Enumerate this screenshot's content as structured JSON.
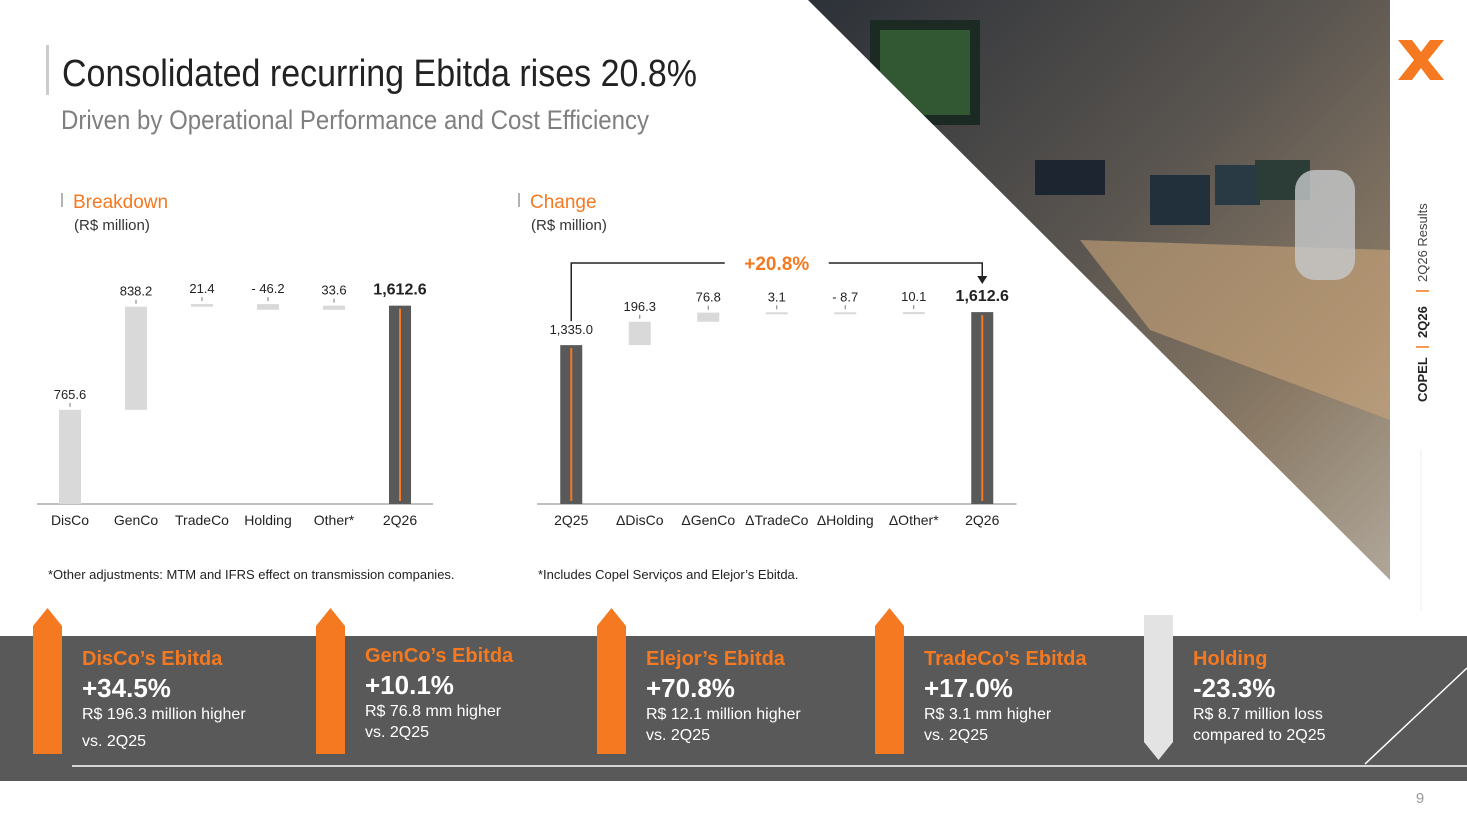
{
  "header": {
    "title": "Consolidated recurring Ebitda rises 20.8%",
    "subtitle": "Driven by Operational Performance and Cost Efficiency"
  },
  "chart_data": [
    {
      "type": "waterfall",
      "title": "Breakdown",
      "subtitle": "(R$ million)",
      "categories": [
        "DisCo",
        "GenCo",
        "TradeCo",
        "Holding",
        "Other*",
        "2Q26"
      ],
      "values": [
        765.6,
        838.2,
        21.4,
        -46.2,
        33.6,
        1612.6
      ],
      "value_labels": [
        "765.6",
        "838.2",
        "21.4",
        "- 46.2",
        "33.6",
        "1,612.6"
      ],
      "is_total": [
        false,
        false,
        false,
        false,
        false,
        true
      ],
      "color": "#d9d9d9",
      "total_color": "#595959",
      "total_line_color": "#f47920",
      "ylim": [
        0,
        2000
      ],
      "footnote": "*Other adjustments: MTM and IFRS effect on transmission companies."
    },
    {
      "type": "waterfall",
      "title": "Change",
      "subtitle": "(R$ million)",
      "categories": [
        "2Q25",
        "ΔDisCo",
        "ΔGenCo",
        "ΔTradeCo",
        "ΔHolding",
        "ΔOther*",
        "2Q26"
      ],
      "values": [
        1335.0,
        196.3,
        76.8,
        3.1,
        -8.7,
        10.1,
        1612.6
      ],
      "value_labels": [
        "1,335.0",
        "196.3",
        "76.8",
        "3.1",
        "- 8.7",
        "10.1",
        "1,612.6"
      ],
      "is_total": [
        true,
        false,
        false,
        false,
        false,
        false,
        true
      ],
      "color": "#d9d9d9",
      "total_color": "#595959",
      "total_line_color": "#f47920",
      "ylim": [
        0,
        2000
      ],
      "annotation": "+20.8%",
      "footnote": "*Includes Copel Serviços and Elejor’s Ebitda."
    }
  ],
  "cards": [
    {
      "title": "DisCo’s Ebitda",
      "value": "+34.5%",
      "lines": [
        "R$ 196.3 million higher",
        "vs. 2Q25"
      ],
      "arrow": "up"
    },
    {
      "title": "GenCo’s Ebitda",
      "value": "+10.1%",
      "lines": [
        "R$ 76.8 mm higher",
        "vs. 2Q25"
      ],
      "arrow": "up"
    },
    {
      "title": "Elejor’s Ebitda",
      "value": "+70.8%",
      "lines": [
        "R$ 12.1 million higher",
        "vs. 2Q25"
      ],
      "arrow": "up"
    },
    {
      "title": "TradeCo’s Ebitda",
      "value": "+17.0%",
      "lines": [
        "R$ 3.1 mm higher",
        "vs. 2Q25"
      ],
      "arrow": "up"
    },
    {
      "title": "Holding",
      "value": "-23.3%",
      "lines": [
        "R$ 8.7 million loss",
        "compared to 2Q25"
      ],
      "arrow": "down"
    }
  ],
  "sidebar": {
    "company": "COPEL",
    "period": "2Q26",
    "document": "2Q26 Results"
  },
  "page_number": "9"
}
